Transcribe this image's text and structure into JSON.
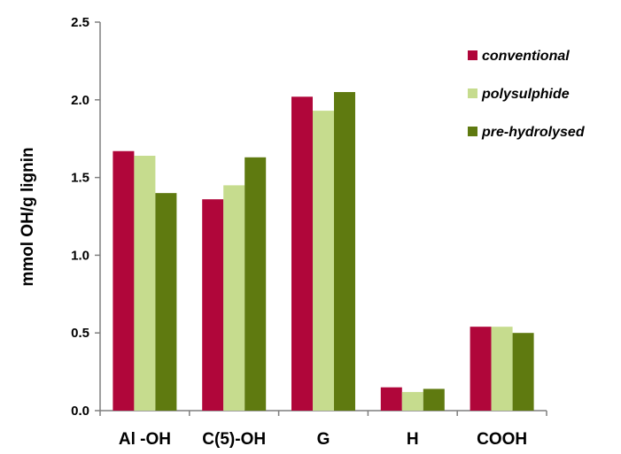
{
  "chart_data": {
    "type": "bar",
    "categories": [
      "Al -OH",
      "C(5)-OH",
      "G",
      "H",
      "COOH"
    ],
    "series": [
      {
        "name": "conventional",
        "color": "#b0063a",
        "values": [
          1.67,
          1.36,
          2.02,
          0.15,
          0.54
        ]
      },
      {
        "name": "polysulphide",
        "color": "#c6dc8e",
        "values": [
          1.64,
          1.45,
          1.93,
          0.12,
          0.54
        ]
      },
      {
        "name": "pre-hydrolysed",
        "color": "#5f7a10",
        "values": [
          1.4,
          1.63,
          2.05,
          0.14,
          0.5
        ]
      }
    ],
    "ylabel": "mmol OH/g lignin",
    "ylim": [
      0,
      2.5
    ],
    "yticks": [
      "0.0",
      "0.5",
      "1.0",
      "1.5",
      "2.0",
      "2.5"
    ],
    "grid": false,
    "legend_position": "top-right"
  }
}
